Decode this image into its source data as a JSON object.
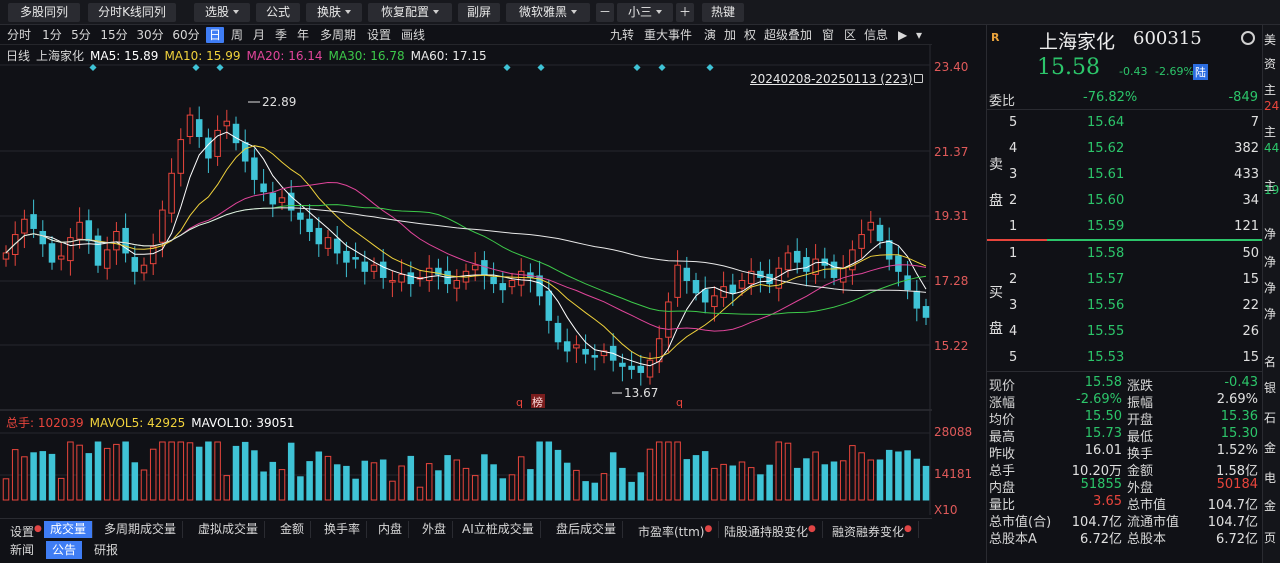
{
  "toolbar": [
    {
      "label": "多股同列",
      "dropdown": false
    },
    {
      "label": "分时K线同列",
      "dropdown": false
    },
    {
      "label": "选股",
      "dropdown": true
    },
    {
      "label": "公式",
      "dropdown": false
    },
    {
      "label": "换肤",
      "dropdown": true
    },
    {
      "label": "恢复配置",
      "dropdown": true
    },
    {
      "label": "副屏",
      "dropdown": false
    },
    {
      "label": "微软雅黑",
      "dropdown": true
    },
    {
      "label": "－",
      "dropdown": false
    },
    {
      "label": "小三",
      "dropdown": true
    },
    {
      "label": "＋",
      "dropdown": false
    },
    {
      "label": "热键",
      "dropdown": false
    }
  ],
  "periods": [
    "分时",
    "1分",
    "5分",
    "15分",
    "30分",
    "60分",
    "日",
    "周",
    "月",
    "季",
    "年",
    "多周期",
    "设置",
    "画线"
  ],
  "active_period": "日",
  "chart_tools": [
    "九转",
    "重大事件",
    "演",
    "加",
    "权",
    "超级叠加",
    "窗",
    "区",
    "信息"
  ],
  "ma_legend": {
    "prefix": "日线",
    "stock": "上海家化",
    "items": [
      {
        "label": "MA5: 15.89",
        "color": "#ffffff"
      },
      {
        "label": "MA10: 15.99",
        "color": "#f0d23c"
      },
      {
        "label": "MA20: 16.14",
        "color": "#e0459a"
      },
      {
        "label": "MA30: 16.78",
        "color": "#3dc94a"
      },
      {
        "label": "MA60: 17.15",
        "color": "#e8e8e8"
      }
    ]
  },
  "date_range": "20240208-20250113 (223)",
  "price_axis": [
    "23.40",
    "21.37",
    "19.31",
    "17.28",
    "15.22"
  ],
  "annotations": {
    "high": "22.89",
    "low": "13.67",
    "marker_q": "q",
    "marker_bang": "榜"
  },
  "volume_legend": {
    "items": [
      {
        "label": "总手: 102039",
        "color": "#e8453c"
      },
      {
        "label": "MAVOL5: 42925",
        "color": "#f0d23c"
      },
      {
        "label": "MAVOL10: 39051",
        "color": "#ffffff"
      }
    ]
  },
  "volume_axis": [
    "28088",
    "14181",
    "X10"
  ],
  "indicator_tabs": [
    {
      "label": "设置",
      "dot": true
    },
    {
      "label": "成交量",
      "dot": false
    },
    {
      "label": "多周期成交量",
      "dot": false
    },
    {
      "label": "虚拟成交量",
      "dot": false
    },
    {
      "label": "金额",
      "dot": false
    },
    {
      "label": "换手率",
      "dot": false
    },
    {
      "label": "内盘",
      "dot": false
    },
    {
      "label": "外盘",
      "dot": false
    },
    {
      "label": "AI立桩成交量",
      "dot": false
    },
    {
      "label": "盘后成交量",
      "dot": false
    },
    {
      "label": "市盈率(ttm)",
      "dot": true
    },
    {
      "label": "陆股通持股变化",
      "dot": true
    },
    {
      "label": "融资融券变化",
      "dot": true
    }
  ],
  "active_indicator": "成交量",
  "news_tabs": [
    "新闻",
    "公告",
    "研报"
  ],
  "active_news_tab": "公告",
  "quote": {
    "badge": "R",
    "name": "上海家化",
    "code": "600315",
    "price": "15.58",
    "change": "-0.43",
    "change_pct": "-2.69%",
    "tag": "陆",
    "weibi_label": "委比",
    "weibi_value": "-76.82%",
    "weibi_diff": "-849",
    "sell_side_label": "卖\n盘",
    "buy_side_label": "买\n盘",
    "sell": [
      {
        "level": "5",
        "price": "15.64",
        "vol": "7"
      },
      {
        "level": "4",
        "price": "15.62",
        "vol": "382"
      },
      {
        "level": "3",
        "price": "15.61",
        "vol": "433"
      },
      {
        "level": "2",
        "price": "15.60",
        "vol": "34"
      },
      {
        "level": "1",
        "price": "15.59",
        "vol": "121"
      }
    ],
    "buy": [
      {
        "level": "1",
        "price": "15.58",
        "vol": "50"
      },
      {
        "level": "2",
        "price": "15.57",
        "vol": "15"
      },
      {
        "level": "3",
        "price": "15.56",
        "vol": "22"
      },
      {
        "level": "4",
        "price": "15.55",
        "vol": "26"
      },
      {
        "level": "5",
        "price": "15.53",
        "vol": "15"
      }
    ],
    "stats": [
      {
        "l1": "现价",
        "v1": "15.58",
        "c1": "green",
        "l2": "涨跌",
        "v2": "-0.43",
        "c2": "green"
      },
      {
        "l1": "涨幅",
        "v1": "-2.69%",
        "c1": "green",
        "l2": "振幅",
        "v2": "2.69%",
        "c2": "white"
      },
      {
        "l1": "均价",
        "v1": "15.50",
        "c1": "green",
        "l2": "开盘",
        "v2": "15.36",
        "c2": "green"
      },
      {
        "l1": "最高",
        "v1": "15.73",
        "c1": "green",
        "l2": "最低",
        "v2": "15.30",
        "c2": "green"
      },
      {
        "l1": "昨收",
        "v1": "16.01",
        "c1": "white",
        "l2": "换手",
        "v2": "1.52%",
        "c2": "white"
      },
      {
        "l1": "总手",
        "v1": "10.20万",
        "c1": "white",
        "l2": "金额",
        "v2": "1.58亿",
        "c2": "white"
      },
      {
        "l1": "内盘",
        "v1": "51855",
        "c1": "green",
        "l2": "外盘",
        "v2": "50184",
        "c2": "red"
      },
      {
        "l1": "量比",
        "v1": "3.65",
        "c1": "red",
        "l2": "总市值",
        "v2": "104.7亿",
        "c2": "white"
      },
      {
        "l1": "总市值(合)",
        "v1": "104.7亿",
        "c1": "white",
        "l2": "流通市值",
        "v2": "104.7亿",
        "c2": "white"
      },
      {
        "l1": "总股本A",
        "v1": "6.72亿",
        "c1": "white",
        "l2": "总股本",
        "v2": "6.72亿",
        "c2": "white"
      }
    ]
  },
  "strip": [
    {
      "text": "美",
      "color": "#e0e0e0"
    },
    {
      "text": "资",
      "color": "#e0e0e0"
    },
    {
      "text": "主",
      "color": "#e0e0e0"
    },
    {
      "text": "24",
      "color": "#e8453c"
    },
    {
      "text": "主",
      "color": "#e0e0e0"
    },
    {
      "text": "44",
      "color": "#2cc56a"
    },
    {
      "text": "主",
      "color": "#e0e0e0"
    },
    {
      "text": "19",
      "color": "#2cc56a"
    },
    {
      "text": "净",
      "color": "#e0e0e0"
    },
    {
      "text": "净",
      "color": "#e0e0e0"
    },
    {
      "text": "净",
      "color": "#e0e0e0"
    },
    {
      "text": "净",
      "color": "#e0e0e0"
    },
    {
      "text": "名",
      "color": "#e0e0e0"
    },
    {
      "text": "银",
      "color": "#e0e0e0"
    },
    {
      "text": "石",
      "color": "#e0e0e0"
    },
    {
      "text": "金",
      "color": "#e0e0e0"
    },
    {
      "text": "电",
      "color": "#e0e0e0"
    },
    {
      "text": "金",
      "color": "#e0e0e0"
    },
    {
      "text": "页",
      "color": "#e0e0e0"
    }
  ],
  "chart_data": {
    "type": "candlestick",
    "range": "20240208-20250113",
    "count": 223,
    "ylim": [
      13.0,
      24.0
    ],
    "closes": [
      17.8,
      18.4,
      18.9,
      18.6,
      18.1,
      17.5,
      17.7,
      18.3,
      18.8,
      18.2,
      17.4,
      17.9,
      18.5,
      17.8,
      17.2,
      17.4,
      18.0,
      19.2,
      20.4,
      21.5,
      22.3,
      21.6,
      20.9,
      21.8,
      22.1,
      21.4,
      20.8,
      20.2,
      19.8,
      19.4,
      19.6,
      19.2,
      18.9,
      18.5,
      18.1,
      18.3,
      17.8,
      17.5,
      17.6,
      17.2,
      17.4,
      17.0,
      16.9,
      17.1,
      16.8,
      17.0,
      17.3,
      17.1,
      16.8,
      16.9,
      17.2,
      17.4,
      17.1,
      16.8,
      16.6,
      16.9,
      17.2,
      17.0,
      16.4,
      15.6,
      14.9,
      14.6,
      14.8,
      14.5,
      14.4,
      14.6,
      14.3,
      14.1,
      14.0,
      13.9,
      14.3,
      15.0,
      16.2,
      17.4,
      16.9,
      16.5,
      16.2,
      16.4,
      16.7,
      16.5,
      16.9,
      17.2,
      17.0,
      16.8,
      17.3,
      17.8,
      17.5,
      17.2,
      17.6,
      17.4,
      17.0,
      17.3,
      17.9,
      18.4,
      18.8,
      18.2,
      17.6,
      17.2,
      16.6,
      16.0,
      15.7
    ]
  }
}
